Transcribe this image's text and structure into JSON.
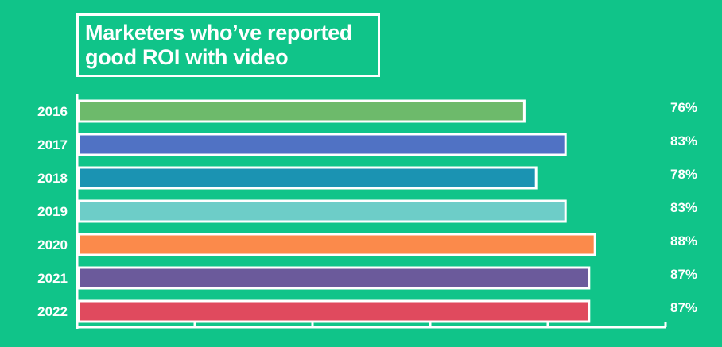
{
  "chart_data": {
    "type": "bar",
    "orientation": "horizontal",
    "title": "Marketers who’ve reported\ngood ROI with video",
    "categories": [
      "2016",
      "2017",
      "2018",
      "2019",
      "2020",
      "2021",
      "2022"
    ],
    "values": [
      76,
      83,
      78,
      83,
      88,
      87,
      87
    ],
    "value_labels": [
      "76%",
      "83%",
      "78%",
      "83%",
      "88%",
      "87%",
      "87%"
    ],
    "xlim": [
      0,
      100
    ],
    "x_ticks_every": 20,
    "grid": false,
    "xlabel": "",
    "ylabel": "",
    "colors": {
      "background": "#10c489",
      "bars": [
        "#6dba6b",
        "#5072c4",
        "#1b93b2",
        "#6dcdc8",
        "#fb8a4b",
        "#6b5a9b",
        "#e04a5e"
      ],
      "outline": "#ffffff"
    }
  }
}
